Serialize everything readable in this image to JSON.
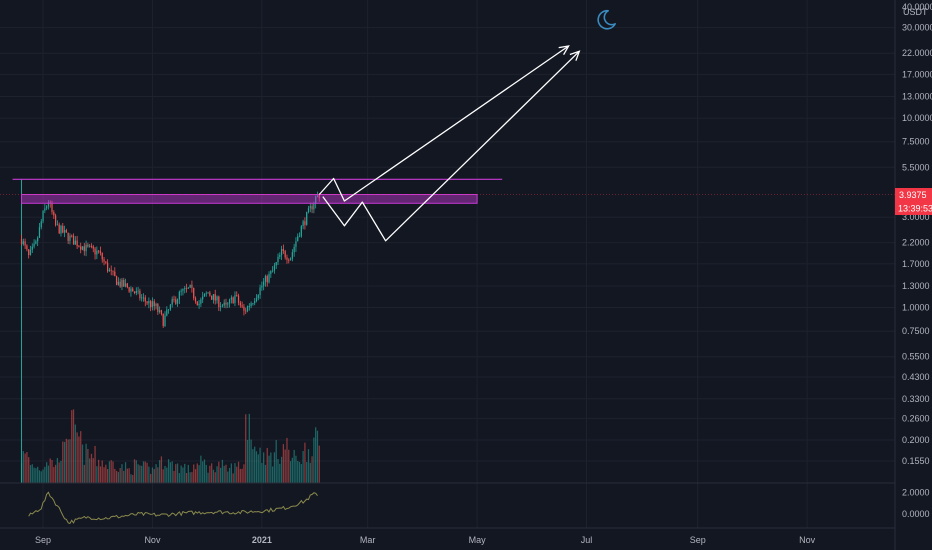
{
  "chart_data": {
    "type": "candlestick",
    "title": "",
    "y_unit": "USDT",
    "scale": "log",
    "ylim": [
      0.12,
      40
    ],
    "y_ticks": [
      "40.0000",
      "30.0000",
      "22.0000",
      "17.0000",
      "13.0000",
      "10.0000",
      "7.5000",
      "5.5000",
      "3.0000",
      "2.2000",
      "1.7000",
      "1.3000",
      "1.0000",
      "0.7500",
      "0.5500",
      "0.4300",
      "0.3300",
      "0.2600",
      "0.2000",
      "0.1550"
    ],
    "y_tick_values": [
      40,
      30,
      22,
      17,
      13,
      10,
      7.5,
      5.5,
      3.0,
      2.2,
      1.7,
      1.3,
      1.0,
      0.75,
      0.55,
      0.43,
      0.33,
      0.26,
      0.2,
      0.155
    ],
    "x_ticks": [
      "Sep",
      "Nov",
      "2021",
      "Mar",
      "May",
      "Jul",
      "Sep",
      "Nov"
    ],
    "x_tick_dates": [
      "2020-09-01",
      "2020-11-01",
      "2021-01-01",
      "2021-03-01",
      "2021-05-01",
      "2021-07-01",
      "2021-09-01",
      "2021-11-01"
    ],
    "x_range": [
      "2020-08-08",
      "2021-12-20"
    ],
    "data_start": "2020-08-20",
    "last_price": "3.9375",
    "countdown": "13:39:53",
    "grid": true,
    "colors": {
      "background": "#131722",
      "grid": "#1e222d",
      "up": "#26a69a",
      "down": "#ef5350",
      "price_line": "#f23645",
      "annotation": "#c63ad6",
      "arrow": "#ffffff",
      "oscillator": "#8b8a4d",
      "moon": "#3a8bbf"
    },
    "price_path": [
      [
        "2020-08-20",
        2.3
      ],
      [
        "2020-08-24",
        1.85
      ],
      [
        "2020-08-28",
        2.15
      ],
      [
        "2020-09-01",
        3.1
      ],
      [
        "2020-09-04",
        3.65
      ],
      [
        "2020-09-08",
        2.7
      ],
      [
        "2020-09-13",
        2.45
      ],
      [
        "2020-09-18",
        2.25
      ],
      [
        "2020-09-25",
        2.05
      ],
      [
        "2020-10-02",
        1.95
      ],
      [
        "2020-10-08",
        1.55
      ],
      [
        "2020-10-13",
        1.35
      ],
      [
        "2020-10-20",
        1.25
      ],
      [
        "2020-10-27",
        1.1
      ],
      [
        "2020-11-03",
        1.0
      ],
      [
        "2020-11-07",
        0.85
      ],
      [
        "2020-11-12",
        1.05
      ],
      [
        "2020-11-17",
        1.2
      ],
      [
        "2020-11-22",
        1.25
      ],
      [
        "2020-11-27",
        1.05
      ],
      [
        "2020-12-02",
        1.2
      ],
      [
        "2020-12-07",
        1.08
      ],
      [
        "2020-12-12",
        1.0
      ],
      [
        "2020-12-17",
        1.15
      ],
      [
        "2020-12-22",
        0.95
      ],
      [
        "2020-12-27",
        1.1
      ],
      [
        "2021-01-02",
        1.35
      ],
      [
        "2021-01-07",
        1.55
      ],
      [
        "2021-01-12",
        1.95
      ],
      [
        "2021-01-17",
        1.85
      ],
      [
        "2021-01-21",
        2.4
      ],
      [
        "2021-01-25",
        2.9
      ],
      [
        "2021-01-28",
        3.3
      ],
      [
        "2021-01-31",
        3.8
      ],
      [
        "2021-02-02",
        3.9375
      ]
    ],
    "volume_profile": [
      0.12,
      0.08,
      0.07,
      0.1,
      0.09,
      0.14,
      0.25,
      0.2,
      0.13,
      0.12,
      0.1,
      0.08,
      0.09,
      0.07,
      0.06,
      0.08,
      0.07,
      0.06,
      0.09,
      0.1,
      0.08,
      0.07,
      0.06,
      0.08,
      0.09,
      0.07,
      0.08,
      0.06,
      0.07,
      0.08,
      0.28,
      0.17,
      0.13,
      0.12,
      0.14,
      0.16,
      0.11,
      0.12,
      0.15,
      0.18
    ],
    "oscillator": {
      "ylim": [
        -1.2,
        2.6
      ],
      "y_ticks": [
        "2.0000",
        "0.0000"
      ],
      "y_tick_values": [
        2.0,
        0.0
      ],
      "path": [
        [
          "2020-08-24",
          -0.2
        ],
        [
          "2020-08-31",
          0.6
        ],
        [
          "2020-09-04",
          2.0
        ],
        [
          "2020-09-10",
          0.5
        ],
        [
          "2020-09-15",
          -0.8
        ],
        [
          "2020-09-25",
          -0.3
        ],
        [
          "2020-10-05",
          -0.4
        ],
        [
          "2020-10-15",
          -0.2
        ],
        [
          "2020-10-25",
          0.0
        ],
        [
          "2020-11-05",
          -0.1
        ],
        [
          "2020-11-20",
          0.1
        ],
        [
          "2020-12-05",
          0.2
        ],
        [
          "2020-12-20",
          0.15
        ],
        [
          "2021-01-05",
          0.35
        ],
        [
          "2021-01-15",
          0.6
        ],
        [
          "2021-01-25",
          1.2
        ],
        [
          "2021-01-30",
          1.9
        ],
        [
          "2021-02-02",
          1.5
        ]
      ]
    },
    "annotations": {
      "resistance_line": {
        "y": 4.75,
        "x_start": "2020-08-15",
        "x_end": "2021-05-15"
      },
      "support_zone": {
        "y_low": 3.55,
        "y_high": 3.95,
        "x_start": "2020-08-20",
        "x_end": "2021-05-01"
      },
      "first_vertical": "2020-08-20",
      "arrow_path_1": [
        [
          "2021-02-02",
          3.95
        ],
        [
          "2021-02-10",
          4.8
        ],
        [
          "2021-02-16",
          3.65
        ],
        [
          "2021-06-21",
          24.0
        ]
      ],
      "arrow_path_2": [
        [
          "2021-02-04",
          3.85
        ],
        [
          "2021-02-16",
          2.7
        ],
        [
          "2021-02-26",
          3.6
        ],
        [
          "2021-03-11",
          2.25
        ],
        [
          "2021-06-27",
          22.5
        ]
      ],
      "moon_at": [
        "2021-07-12",
        33.0
      ]
    }
  }
}
